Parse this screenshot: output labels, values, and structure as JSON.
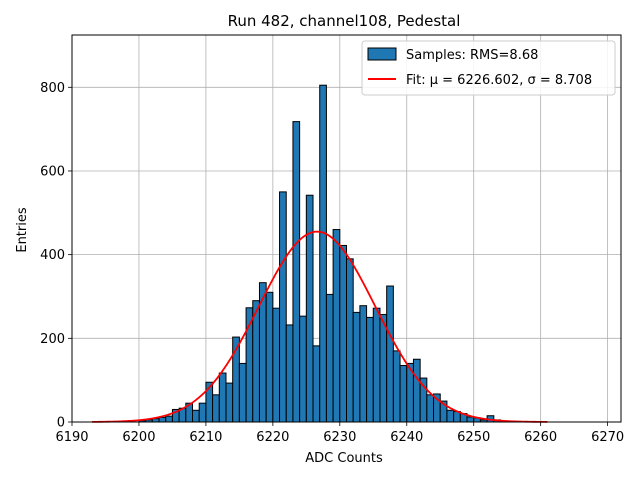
{
  "chart_data": {
    "type": "bar",
    "title": "Run 482, channel108, Pedestal",
    "xlabel": "ADC Counts",
    "ylabel": "Entries",
    "xlim": [
      6190,
      6272
    ],
    "ylim": [
      0,
      925
    ],
    "xticks": [
      6190,
      6200,
      6210,
      6220,
      6230,
      6240,
      6250,
      6260,
      6270
    ],
    "yticks": [
      0,
      200,
      400,
      600,
      800
    ],
    "grid": true,
    "legend_position": "top-right",
    "bin_width": 1,
    "histogram": {
      "name": "Samples: RMS=8.68",
      "color": "#1f77b4",
      "edgecolor": "#000000",
      "bin_starts": [
        6200,
        6201,
        6202,
        6203,
        6204,
        6205,
        6206,
        6207,
        6208,
        6209,
        6210,
        6211,
        6212,
        6213,
        6214,
        6215,
        6216,
        6217,
        6218,
        6219,
        6220,
        6221,
        6222,
        6223,
        6224,
        6225,
        6226,
        6227,
        6228,
        6229,
        6230,
        6231,
        6232,
        6233,
        6234,
        6235,
        6236,
        6237,
        6238,
        6239,
        6240,
        6241,
        6242,
        6243,
        6244,
        6245,
        6246,
        6247,
        6248,
        6249,
        6250,
        6251,
        6252,
        6253
      ],
      "counts": [
        3,
        5,
        8,
        11,
        14,
        30,
        33,
        45,
        28,
        45,
        95,
        65,
        117,
        93,
        203,
        140,
        273,
        290,
        333,
        310,
        272,
        550,
        232,
        718,
        253,
        542,
        182,
        805,
        305,
        460,
        422,
        390,
        262,
        278,
        250,
        272,
        257,
        325,
        170,
        135,
        140,
        150,
        105,
        65,
        67,
        50,
        28,
        25,
        20,
        12,
        10,
        5,
        15,
        5
      ]
    },
    "fit": {
      "name": "Fit: μ = 6226.602, σ = 8.708",
      "color": "#ff0000",
      "mu": 6226.602,
      "sigma": 8.708,
      "amplitude": 455,
      "x_range": [
        6193,
        6261
      ]
    }
  }
}
